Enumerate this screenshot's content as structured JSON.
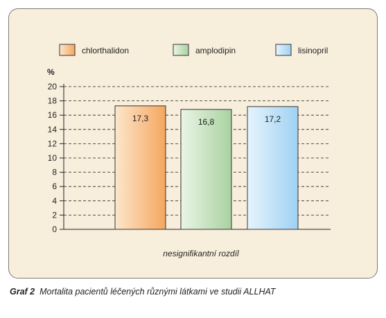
{
  "chart_data": {
    "type": "bar",
    "categories": [
      "chlorthalidon",
      "amplodipin",
      "lisinopril"
    ],
    "values": [
      17.3,
      16.8,
      17.2
    ],
    "value_labels": [
      "17,3",
      "16,8",
      "17,2"
    ],
    "ylabel": "%",
    "ylim": [
      0,
      20
    ],
    "yticks": [
      0,
      2,
      4,
      6,
      8,
      10,
      12,
      14,
      16,
      18,
      20
    ],
    "xlabel": "nesignifikantní rozdíl",
    "grid": true,
    "legend_position": "top",
    "colors": [
      {
        "light": "#fde6cc",
        "dark": "#f4a75f"
      },
      {
        "light": "#eaf5e6",
        "dark": "#a9d2a0"
      },
      {
        "light": "#e6f4fd",
        "dark": "#9fd1f2"
      }
    ]
  },
  "caption": {
    "label": "Graf 2",
    "text": "Mortalita pacientů léčených různými látkami ve studii ALLHAT"
  }
}
